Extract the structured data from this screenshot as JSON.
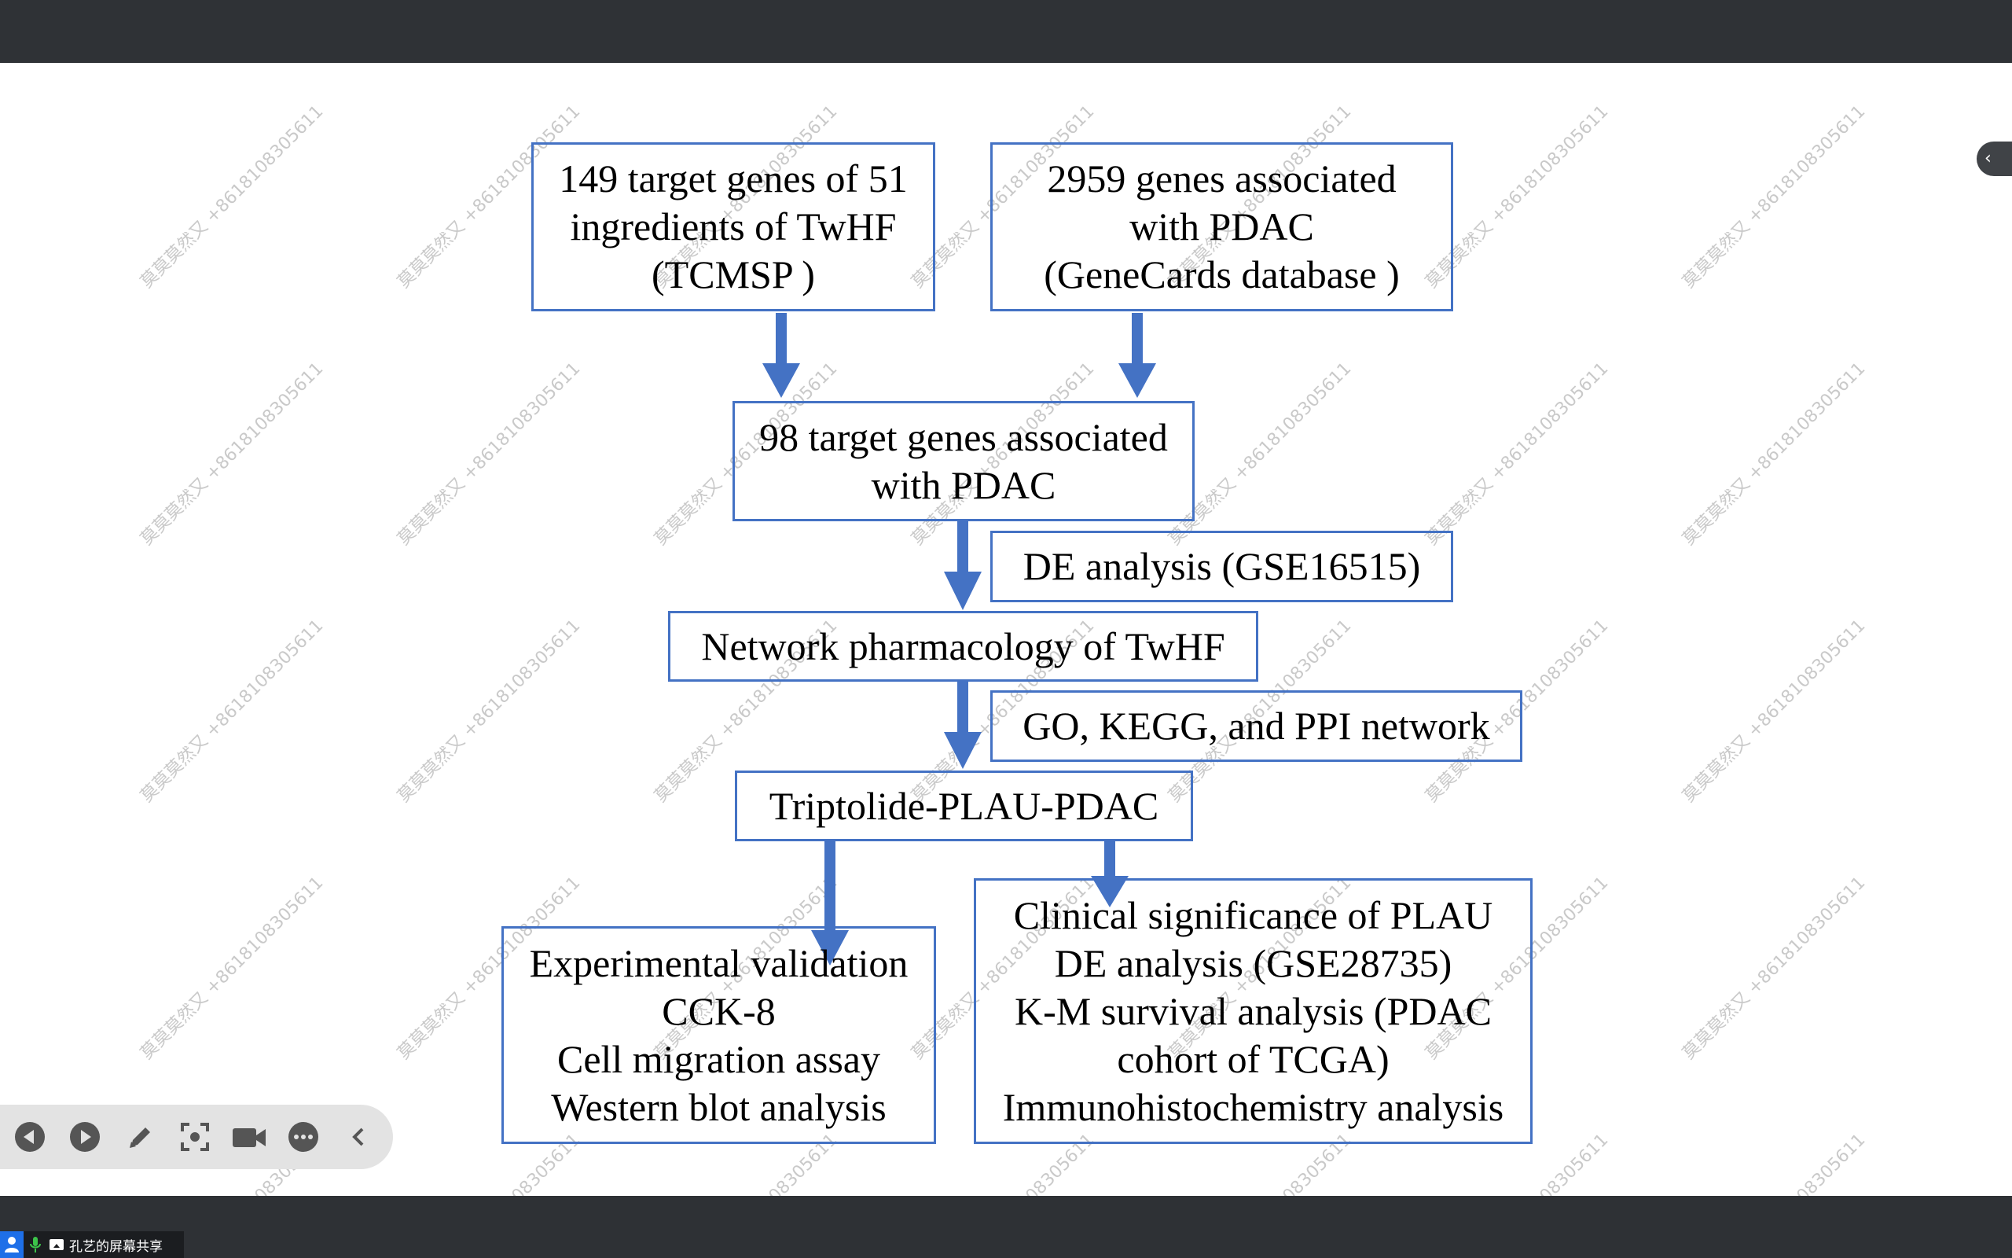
{
  "colors": {
    "accent": "#4472c4",
    "arrow": "#4472c4",
    "chrome": "#2f3236",
    "toolbar": "#e3e3e3"
  },
  "watermark": {
    "text": "莫莫莫然又 +8618108305611"
  },
  "diagram": {
    "box_tcmsp": {
      "lines": [
        "149 target genes of 51",
        "ingredients of TwHF",
        "(TCMSP )"
      ]
    },
    "box_genecards": {
      "lines": [
        "2959 genes associated",
        "with PDAC",
        "(GeneCards database )"
      ]
    },
    "box_98": {
      "lines": [
        "98 target genes associated",
        "with PDAC"
      ]
    },
    "box_de": {
      "lines": [
        "DE analysis (GSE16515)"
      ]
    },
    "box_network": {
      "lines": [
        "Network pharmacology of TwHF"
      ]
    },
    "box_go": {
      "lines": [
        "GO, KEGG, and PPI network"
      ]
    },
    "box_triptolide": {
      "lines": [
        "Triptolide-PLAU-PDAC"
      ]
    },
    "box_experimental": {
      "lines": [
        "Experimental validation",
        "CCK-8",
        "Cell migration assay",
        "Western blot analysis"
      ]
    },
    "box_clinical": {
      "lines": [
        "Clinical significance of PLAU",
        "DE analysis (GSE28735)",
        "K-M survival analysis (PDAC",
        "cohort of TCGA)",
        "Immunohistochemistry analysis"
      ]
    }
  },
  "side_tab": {
    "icon": "chevron-left-icon",
    "label": "‹"
  },
  "toolbar": {
    "icons": [
      "previous-icon",
      "next-icon",
      "pen-icon",
      "screenshot-icon",
      "camera-icon",
      "more-icon",
      "collapse-icon"
    ]
  },
  "share_bar": {
    "text": "孔艺的屏幕共享",
    "icons": [
      "user-icon",
      "mic-icon",
      "screen-share-icon"
    ]
  }
}
